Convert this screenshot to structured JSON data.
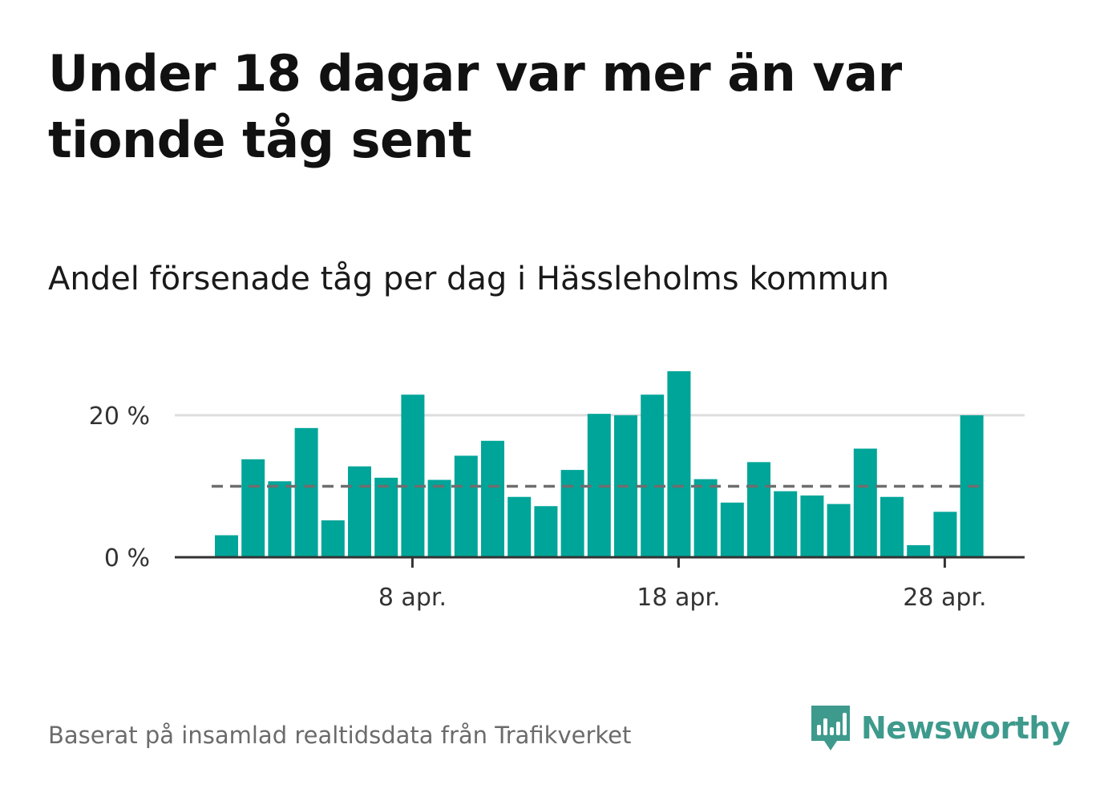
{
  "headline": "Under 18 dagar var mer än var tionde tåg sent",
  "subtitle": "Andel försenade tåg per dag i Hässleholms kommun",
  "source": "Baserat på insamlad realtidsdata från Trafikverket",
  "brand": {
    "name": "Newsworthy",
    "icon": "newsworthy-logo-icon",
    "color": "#3e9a8c"
  },
  "colors": {
    "bar": "#00a599",
    "grid": "#dddddd",
    "axis": "#333333",
    "reference_line": "#6e6e6e"
  },
  "chart_data": {
    "type": "bar",
    "x": [
      "1 apr.",
      "2 apr.",
      "3 apr.",
      "4 apr.",
      "5 apr.",
      "6 apr.",
      "7 apr.",
      "8 apr.",
      "9 apr.",
      "10 apr.",
      "11 apr.",
      "12 apr.",
      "13 apr.",
      "14 apr.",
      "15 apr.",
      "16 apr.",
      "17 apr.",
      "18 apr.",
      "19 apr.",
      "20 apr.",
      "21 apr.",
      "22 apr.",
      "23 apr.",
      "24 apr.",
      "25 apr.",
      "26 apr.",
      "27 apr.",
      "28 apr.",
      "29 apr."
    ],
    "values": [
      3.1,
      13.8,
      10.7,
      18.2,
      5.2,
      12.8,
      11.2,
      22.9,
      10.9,
      14.3,
      16.4,
      8.5,
      7.2,
      12.3,
      20.2,
      20.0,
      22.9,
      26.2,
      11.0,
      7.7,
      13.4,
      9.3,
      8.7,
      7.5,
      15.3,
      8.5,
      1.7,
      6.4,
      20.0
    ],
    "unit": "%",
    "reference_value": 10,
    "reference_style": "dashed",
    "ylim": [
      0,
      26.2
    ],
    "yticks": [
      {
        "value": 0,
        "label": "0 %"
      },
      {
        "value": 20,
        "label": "20 %"
      }
    ],
    "xticks": [
      {
        "index": 7,
        "label": "8 apr."
      },
      {
        "index": 17,
        "label": "18 apr."
      },
      {
        "index": 27,
        "label": "28 apr."
      }
    ],
    "grid": true,
    "xlabel": "",
    "ylabel": ""
  }
}
